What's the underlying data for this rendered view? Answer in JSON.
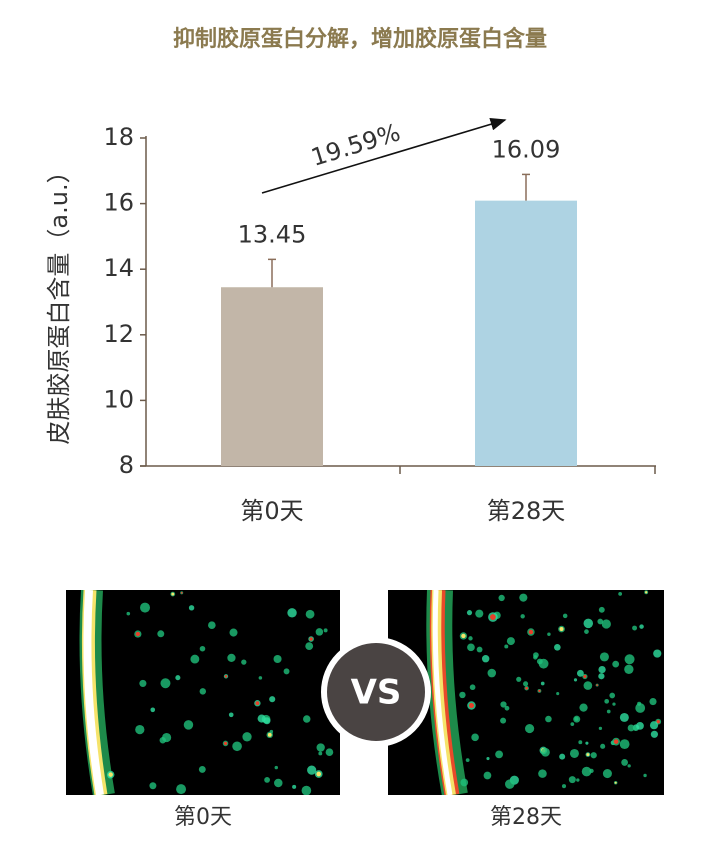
{
  "chart_data": {
    "type": "bar",
    "title": "抑制胶原蛋白分解，增加胶原蛋白含量",
    "y_label": "皮肤胶原蛋白含量（a.u.）",
    "categories": [
      "第0天",
      "第28天"
    ],
    "values": [
      13.45,
      16.09
    ],
    "errors": [
      0.85,
      0.8
    ],
    "colors": [
      "#c2b6a8",
      "#aed3e3"
    ],
    "annotation": "19.59%",
    "ylim": [
      8,
      18
    ],
    "yticks": [
      8,
      10,
      12,
      14,
      16,
      18
    ],
    "grid": false
  },
  "comparison": {
    "labels": [
      "第0天",
      "第28天"
    ],
    "vs": "VS"
  }
}
